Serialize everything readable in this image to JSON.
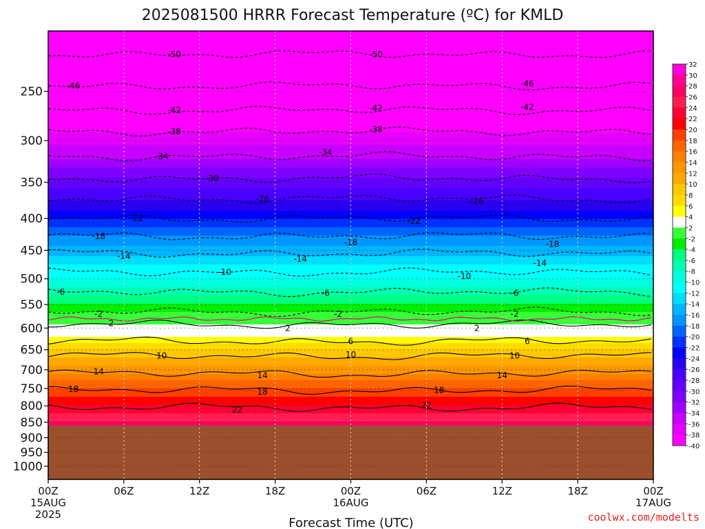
{
  "chart_data": {
    "type": "heatmap",
    "title": "2025081500 HRRR Forecast Temperature (ºC) for KMLD",
    "xlabel": "Forecast Time (UTC)",
    "ylabel": "",
    "source_credit": "coolwx.com/modelts",
    "y_scale": "log-pressure",
    "y_range_hpa": [
      200,
      1050
    ],
    "x_range_hours": [
      0,
      48
    ],
    "surface_pressure_hpa": 860,
    "grid": true,
    "legend_placement": "right",
    "y_ticks": [
      {
        "value": 250,
        "label": "250"
      },
      {
        "value": 300,
        "label": "300"
      },
      {
        "value": 350,
        "label": "350"
      },
      {
        "value": 400,
        "label": "400"
      },
      {
        "value": 450,
        "label": "450"
      },
      {
        "value": 500,
        "label": "500"
      },
      {
        "value": 550,
        "label": "550"
      },
      {
        "value": 600,
        "label": "600"
      },
      {
        "value": 650,
        "label": "650"
      },
      {
        "value": 700,
        "label": "700"
      },
      {
        "value": 750,
        "label": "750"
      },
      {
        "value": 800,
        "label": "800"
      },
      {
        "value": 850,
        "label": "850"
      },
      {
        "value": 900,
        "label": "900"
      },
      {
        "value": 950,
        "label": "950"
      },
      {
        "value": 1000,
        "label": "1000"
      }
    ],
    "x_ticks": [
      {
        "hour": 0,
        "label": "00Z",
        "date": "15AUG",
        "year": "2025"
      },
      {
        "hour": 6,
        "label": "06Z"
      },
      {
        "hour": 12,
        "label": "12Z"
      },
      {
        "hour": 18,
        "label": "18Z"
      },
      {
        "hour": 24,
        "label": "00Z",
        "date": "16AUG"
      },
      {
        "hour": 30,
        "label": "06Z"
      },
      {
        "hour": 36,
        "label": "12Z"
      },
      {
        "hour": 42,
        "label": "18Z"
      },
      {
        "hour": 48,
        "label": "00Z",
        "date": "17AUG"
      }
    ],
    "temperature_profile": [
      {
        "p": 200,
        "t": -52
      },
      {
        "p": 230,
        "t": -48
      },
      {
        "p": 250,
        "t": -45
      },
      {
        "p": 270,
        "t": -42
      },
      {
        "p": 290,
        "t": -38
      },
      {
        "p": 320,
        "t": -34
      },
      {
        "p": 350,
        "t": -29
      },
      {
        "p": 375,
        "t": -26
      },
      {
        "p": 400,
        "t": -22
      },
      {
        "p": 425,
        "t": -18
      },
      {
        "p": 450,
        "t": -15
      },
      {
        "p": 475,
        "t": -12
      },
      {
        "p": 500,
        "t": -10
      },
      {
        "p": 530,
        "t": -6
      },
      {
        "p": 560,
        "t": -3
      },
      {
        "p": 575,
        "t": -1
      },
      {
        "p": 590,
        "t": 2
      },
      {
        "p": 620,
        "t": 4
      },
      {
        "p": 650,
        "t": 8
      },
      {
        "p": 680,
        "t": 11
      },
      {
        "p": 720,
        "t": 15
      },
      {
        "p": 760,
        "t": 19
      },
      {
        "p": 800,
        "t": 22
      },
      {
        "p": 850,
        "t": 26
      },
      {
        "p": 860,
        "t": 27
      }
    ],
    "contours": [
      {
        "t": -50,
        "p": 218,
        "dashed": true
      },
      {
        "t": -46,
        "p": 245,
        "dashed": true
      },
      {
        "t": -42,
        "p": 268,
        "dashed": true
      },
      {
        "t": -38,
        "p": 290,
        "dashed": true
      },
      {
        "t": -34,
        "p": 318,
        "dashed": true
      },
      {
        "t": -30,
        "p": 345,
        "dashed": true
      },
      {
        "t": -26,
        "p": 372,
        "dashed": true
      },
      {
        "t": -22,
        "p": 400,
        "dashed": true
      },
      {
        "t": -18,
        "p": 427,
        "dashed": true
      },
      {
        "t": -14,
        "p": 455,
        "dashed": true
      },
      {
        "t": -10,
        "p": 488,
        "dashed": true
      },
      {
        "t": -6,
        "p": 525,
        "dashed": true
      },
      {
        "t": -2,
        "p": 565,
        "dashed": true
      },
      {
        "t": 2,
        "p": 592,
        "dashed": false
      },
      {
        "t": 6,
        "p": 630,
        "dashed": false
      },
      {
        "t": 10,
        "p": 665,
        "dashed": false
      },
      {
        "t": 14,
        "p": 710,
        "dashed": false
      },
      {
        "t": 18,
        "p": 755,
        "dashed": false
      },
      {
        "t": 22,
        "p": 805,
        "dashed": false
      }
    ],
    "contour_labels": [
      {
        "text": "-50",
        "hour": 10,
        "p": 218
      },
      {
        "text": "-50",
        "hour": 26,
        "p": 218
      },
      {
        "text": "-46",
        "hour": 2,
        "p": 245
      },
      {
        "text": "-46",
        "hour": 38,
        "p": 243
      },
      {
        "text": "-42",
        "hour": 10,
        "p": 268
      },
      {
        "text": "-42",
        "hour": 26,
        "p": 266
      },
      {
        "text": "-42",
        "hour": 38,
        "p": 265
      },
      {
        "text": "-38",
        "hour": 10,
        "p": 290
      },
      {
        "text": "-38",
        "hour": 26,
        "p": 288
      },
      {
        "text": "-34",
        "hour": 9,
        "p": 318
      },
      {
        "text": "-34",
        "hour": 22,
        "p": 313
      },
      {
        "text": "-30",
        "hour": 13,
        "p": 345
      },
      {
        "text": "-26",
        "hour": 17,
        "p": 372
      },
      {
        "text": "-26",
        "hour": 34,
        "p": 375
      },
      {
        "text": "-22",
        "hour": 7,
        "p": 400
      },
      {
        "text": "-22",
        "hour": 29,
        "p": 404
      },
      {
        "text": "-18",
        "hour": 4,
        "p": 427
      },
      {
        "text": "-18",
        "hour": 24,
        "p": 437
      },
      {
        "text": "-18",
        "hour": 40,
        "p": 440
      },
      {
        "text": "-14",
        "hour": 6,
        "p": 460
      },
      {
        "text": "-14",
        "hour": 20,
        "p": 465
      },
      {
        "text": "-14",
        "hour": 39,
        "p": 472
      },
      {
        "text": "-10",
        "hour": 14,
        "p": 488
      },
      {
        "text": "-10",
        "hour": 33,
        "p": 495
      },
      {
        "text": "-6",
        "hour": 1,
        "p": 525
      },
      {
        "text": "-6",
        "hour": 22,
        "p": 527
      },
      {
        "text": "-6",
        "hour": 37,
        "p": 527
      },
      {
        "text": "-2",
        "hour": 4,
        "p": 570
      },
      {
        "text": "-2",
        "hour": 23,
        "p": 570
      },
      {
        "text": "-2",
        "hour": 37,
        "p": 570
      },
      {
        "text": "2",
        "hour": 5,
        "p": 590
      },
      {
        "text": "2",
        "hour": 19,
        "p": 600
      },
      {
        "text": "2",
        "hour": 34,
        "p": 600
      },
      {
        "text": "6",
        "hour": 24,
        "p": 630
      },
      {
        "text": "6",
        "hour": 38,
        "p": 630
      },
      {
        "text": "10",
        "hour": 9,
        "p": 665
      },
      {
        "text": "10",
        "hour": 24,
        "p": 662
      },
      {
        "text": "10",
        "hour": 37,
        "p": 665
      },
      {
        "text": "14",
        "hour": 4,
        "p": 705
      },
      {
        "text": "14",
        "hour": 17,
        "p": 715
      },
      {
        "text": "14",
        "hour": 36,
        "p": 715
      },
      {
        "text": "18",
        "hour": 2,
        "p": 752
      },
      {
        "text": "18",
        "hour": 17,
        "p": 760
      },
      {
        "text": "18",
        "hour": 31,
        "p": 755
      },
      {
        "text": "22",
        "hour": 15,
        "p": 812
      },
      {
        "text": "22",
        "hour": 30,
        "p": 798
      }
    ],
    "colorbar": {
      "labels": [
        "32",
        "30",
        "28",
        "26",
        "24",
        "22",
        "20",
        "18",
        "16",
        "14",
        "12",
        "10",
        "8",
        "6",
        "4",
        "2",
        "-2",
        "-4",
        "-6",
        "-8",
        "-10",
        "-12",
        "-14",
        "-16",
        "-18",
        "-20",
        "-22",
        "-24",
        "-26",
        "-28",
        "-30",
        "-32",
        "-34",
        "-36",
        "-38",
        "-40"
      ],
      "colors": [
        "#ff00dc",
        "#ff0096",
        "#ff0064",
        "#ff1e50",
        "#ff0032",
        "#ff0000",
        "#ff4000",
        "#ff6400",
        "#ff8000",
        "#ff9600",
        "#ffaa00",
        "#ffc800",
        "#ffdc00",
        "#ffff00",
        "#ffffff",
        "#38ff38",
        "#00ee00",
        "#00ff80",
        "#00ffb0",
        "#00ffdd",
        "#00ffff",
        "#00ddff",
        "#00b4ff",
        "#0096ff",
        "#0064ff",
        "#0032ff",
        "#0000ff",
        "#2800ee",
        "#4a00ff",
        "#6400ff",
        "#8000ff",
        "#a000ff",
        "#c800ff",
        "#e600ff",
        "#ff00ff"
      ]
    }
  }
}
